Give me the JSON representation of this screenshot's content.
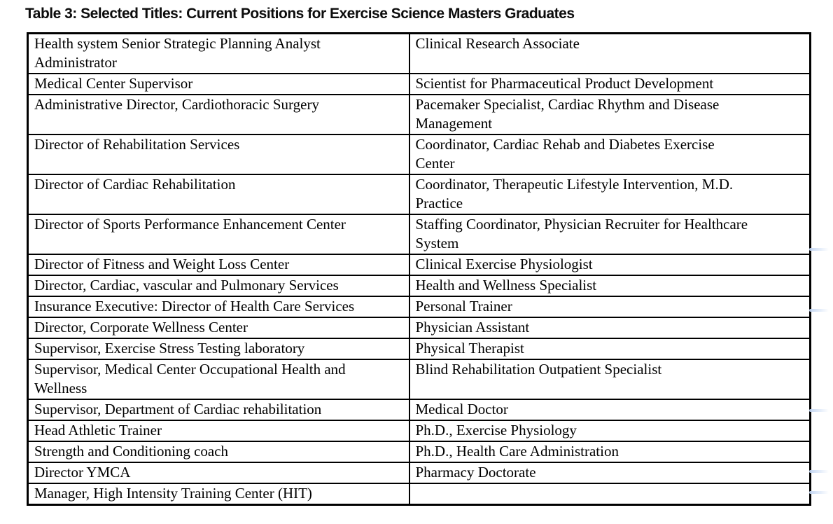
{
  "document": {
    "title": "Table 3: Selected Titles: Current Positions for Exercise Science Masters Graduates"
  },
  "table": {
    "columns": [
      "left",
      "right"
    ],
    "rows": [
      {
        "left": "Health system Senior Strategic Planning Analyst\nAdministrator",
        "right": "Clinical Research Associate"
      },
      {
        "left": "Medical Center Supervisor",
        "right": "Scientist for Pharmaceutical Product Development"
      },
      {
        "left": "Administrative Director, Cardiothoracic Surgery",
        "right": "Pacemaker Specialist, Cardiac Rhythm and Disease\nManagement"
      },
      {
        "left": "Director of Rehabilitation Services",
        "right": "Coordinator, Cardiac Rehab and Diabetes Exercise\nCenter"
      },
      {
        "left": "Director of Cardiac Rehabilitation",
        "right": "Coordinator, Therapeutic Lifestyle Intervention, M.D.\nPractice"
      },
      {
        "left": "Director of Sports Performance Enhancement Center",
        "right": "Staffing Coordinator, Physician Recruiter for Healthcare\nSystem"
      },
      {
        "left": "Director of Fitness and Weight Loss Center",
        "right": "Clinical Exercise Physiologist"
      },
      {
        "left": "Director, Cardiac, vascular and Pulmonary Services",
        "right": "Health and Wellness Specialist"
      },
      {
        "left": "Insurance Executive: Director of Health Care Services",
        "right": "Personal Trainer"
      },
      {
        "left": "Director, Corporate Wellness Center",
        "right": "Physician Assistant"
      },
      {
        "left": "Supervisor, Exercise Stress Testing laboratory",
        "right": "Physical Therapist"
      },
      {
        "left": "Supervisor, Medical Center Occupational Health and\nWellness",
        "right": "Blind Rehabilitation Outpatient Specialist"
      },
      {
        "left": "Supervisor, Department of Cardiac rehabilitation",
        "right": "Medical Doctor"
      },
      {
        "left": "Head Athletic Trainer",
        "right": "Ph.D., Exercise Physiology"
      },
      {
        "left": "Strength and Conditioning coach",
        "right": "Ph.D., Health Care Administration"
      },
      {
        "left": "Director YMCA",
        "right": "Pharmacy Doctorate"
      },
      {
        "left": "Manager, High Intensity Training Center (HIT)",
        "right": ""
      }
    ]
  },
  "ui": {
    "background_color": "#ffffff",
    "text_color": "#000000",
    "border_color": "#000000",
    "annotation_mark_color": "#c3d6f2"
  }
}
